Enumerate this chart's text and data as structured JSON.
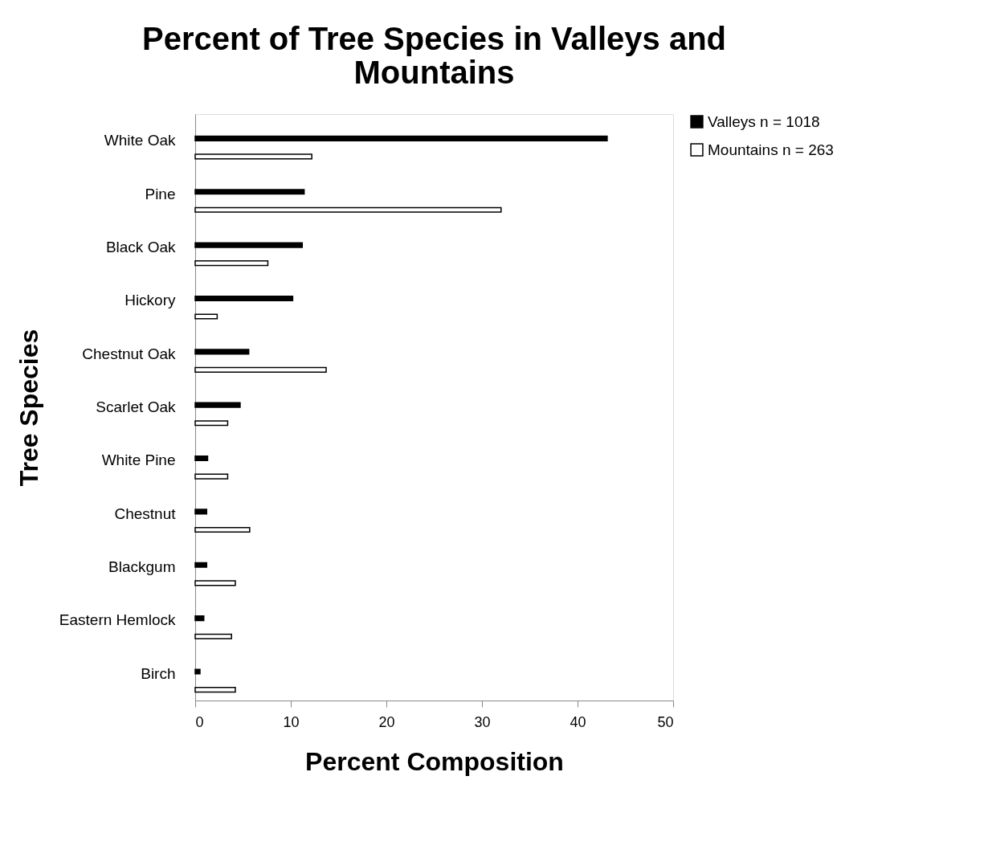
{
  "chart_data": {
    "type": "bar",
    "orientation": "horizontal",
    "title": "Percent of Tree Species in Valleys and Mountains",
    "xlabel": "Percent Composition",
    "ylabel": "Tree Species",
    "categories": [
      "White Oak",
      "Pine",
      "Black Oak",
      "Hickory",
      "Chestnut Oak",
      "Scarlet Oak",
      "White Pine",
      "Chestnut",
      "Blackgum",
      "Eastern Hemlock",
      "Birch"
    ],
    "series": [
      {
        "name": "Valleys n = 1018",
        "color": "#000000",
        "values": [
          43.1,
          11.4,
          11.2,
          10.2,
          5.6,
          4.7,
          1.3,
          1.2,
          1.2,
          0.9,
          0.5
        ]
      },
      {
        "name": "Mountains n = 263",
        "color": "#ffffff",
        "values": [
          12.2,
          32.0,
          7.6,
          2.3,
          13.7,
          3.4,
          3.4,
          5.7,
          4.2,
          3.8,
          4.2
        ]
      }
    ],
    "xlim": [
      0,
      50
    ],
    "xticks": [
      0,
      10,
      20,
      30,
      40,
      50
    ],
    "grid": false,
    "legend": "right"
  }
}
